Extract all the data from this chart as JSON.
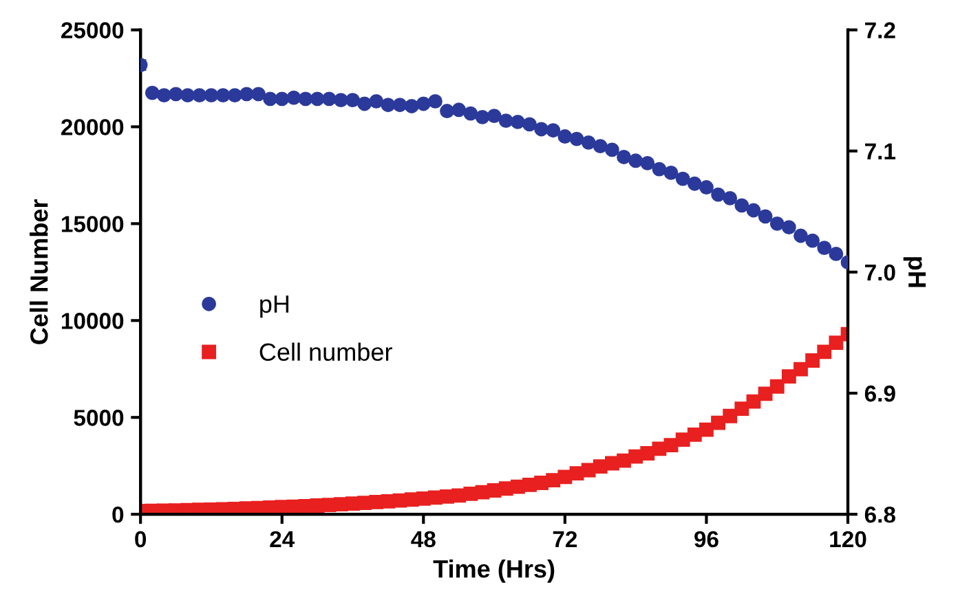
{
  "chart_data": {
    "type": "scatter",
    "xlabel": "Time (Hrs)",
    "ylabel": "Cell Number",
    "y2label": "pH",
    "xlim": [
      0,
      120
    ],
    "xticks": [
      0,
      24,
      48,
      72,
      96,
      120
    ],
    "ylim": [
      0,
      25000
    ],
    "yticks": [
      0,
      5000,
      10000,
      15000,
      20000,
      25000
    ],
    "y2lim": [
      6.8,
      7.2
    ],
    "y2ticks": [
      {
        "value": 6.8,
        "label": "6.8"
      },
      {
        "value": 6.9,
        "label": "6.9"
      },
      {
        "value": 7.0,
        "label": "7.0"
      },
      {
        "value": 7.1,
        "label": "7.1"
      },
      {
        "value": 7.2,
        "label": "7.2"
      }
    ],
    "grid": false,
    "legend": "left",
    "x": [
      0,
      2,
      4,
      6,
      8,
      10,
      12,
      14,
      16,
      18,
      20,
      22,
      24,
      26,
      28,
      30,
      32,
      34,
      36,
      38,
      40,
      42,
      44,
      46,
      48,
      50,
      52,
      54,
      56,
      58,
      60,
      62,
      64,
      66,
      68,
      70,
      72,
      74,
      76,
      78,
      80,
      82,
      84,
      86,
      88,
      90,
      92,
      94,
      96,
      98,
      100,
      102,
      104,
      106,
      108,
      110,
      112,
      114,
      116,
      118,
      120
    ],
    "series": [
      {
        "name": "pH",
        "color": "#2b3a9a",
        "marker": "circle",
        "axis": "y2",
        "values": [
          7.171,
          7.148,
          7.146,
          7.147,
          7.146,
          7.146,
          7.146,
          7.146,
          7.146,
          7.147,
          7.147,
          7.143,
          7.143,
          7.144,
          7.143,
          7.143,
          7.143,
          7.142,
          7.142,
          7.139,
          7.141,
          7.138,
          7.138,
          7.137,
          7.139,
          7.141,
          7.133,
          7.134,
          7.131,
          7.128,
          7.129,
          7.125,
          7.124,
          7.122,
          7.118,
          7.117,
          7.112,
          7.11,
          7.107,
          7.104,
          7.101,
          7.095,
          7.092,
          7.09,
          7.085,
          7.082,
          7.077,
          7.073,
          7.07,
          7.064,
          7.061,
          7.055,
          7.051,
          7.046,
          7.04,
          7.037,
          7.03,
          7.026,
          7.02,
          7.015,
          7.008
        ],
        "errors": [
          0.004,
          null,
          null,
          null,
          null,
          null,
          null,
          null,
          null,
          null,
          null,
          null,
          null,
          null,
          null,
          null,
          null,
          null,
          null,
          null,
          null,
          null,
          null,
          null,
          null,
          null,
          null,
          null,
          null,
          null,
          null,
          null,
          null,
          null,
          null,
          null,
          null,
          null,
          null,
          null,
          null,
          null,
          null,
          null,
          null,
          null,
          null,
          null,
          null,
          null,
          null,
          null,
          null,
          null,
          null,
          null,
          null,
          null,
          null,
          null,
          null
        ]
      },
      {
        "name": "Cell number",
        "color": "#e8201f",
        "marker": "square",
        "values": [
          170,
          180,
          190,
          200,
          215,
          230,
          245,
          260,
          280,
          300,
          320,
          345,
          370,
          395,
          420,
          450,
          480,
          515,
          550,
          590,
          630,
          670,
          715,
          760,
          810,
          860,
          915,
          970,
          1060,
          1140,
          1230,
          1330,
          1420,
          1520,
          1620,
          1761,
          1927,
          2115,
          2279,
          2467,
          2631,
          2772,
          2983,
          3148,
          3383,
          3570,
          3852,
          4111,
          4369,
          4721,
          5072,
          5447,
          5823,
          6222,
          6598,
          7114,
          7490,
          7936,
          8383,
          8851,
          9297
        ],
        "errors": [
          null,
          null,
          null,
          null,
          null,
          null,
          null,
          null,
          null,
          null,
          null,
          null,
          null,
          null,
          null,
          null,
          null,
          null,
          null,
          null,
          null,
          null,
          null,
          null,
          null,
          null,
          null,
          null,
          null,
          null,
          null,
          null,
          null,
          null,
          null,
          null,
          null,
          null,
          null,
          null,
          null,
          null,
          null,
          null,
          null,
          null,
          null,
          null,
          null,
          null,
          null,
          null,
          null,
          null,
          null,
          null,
          null,
          null,
          150,
          200,
          250
        ]
      }
    ]
  }
}
